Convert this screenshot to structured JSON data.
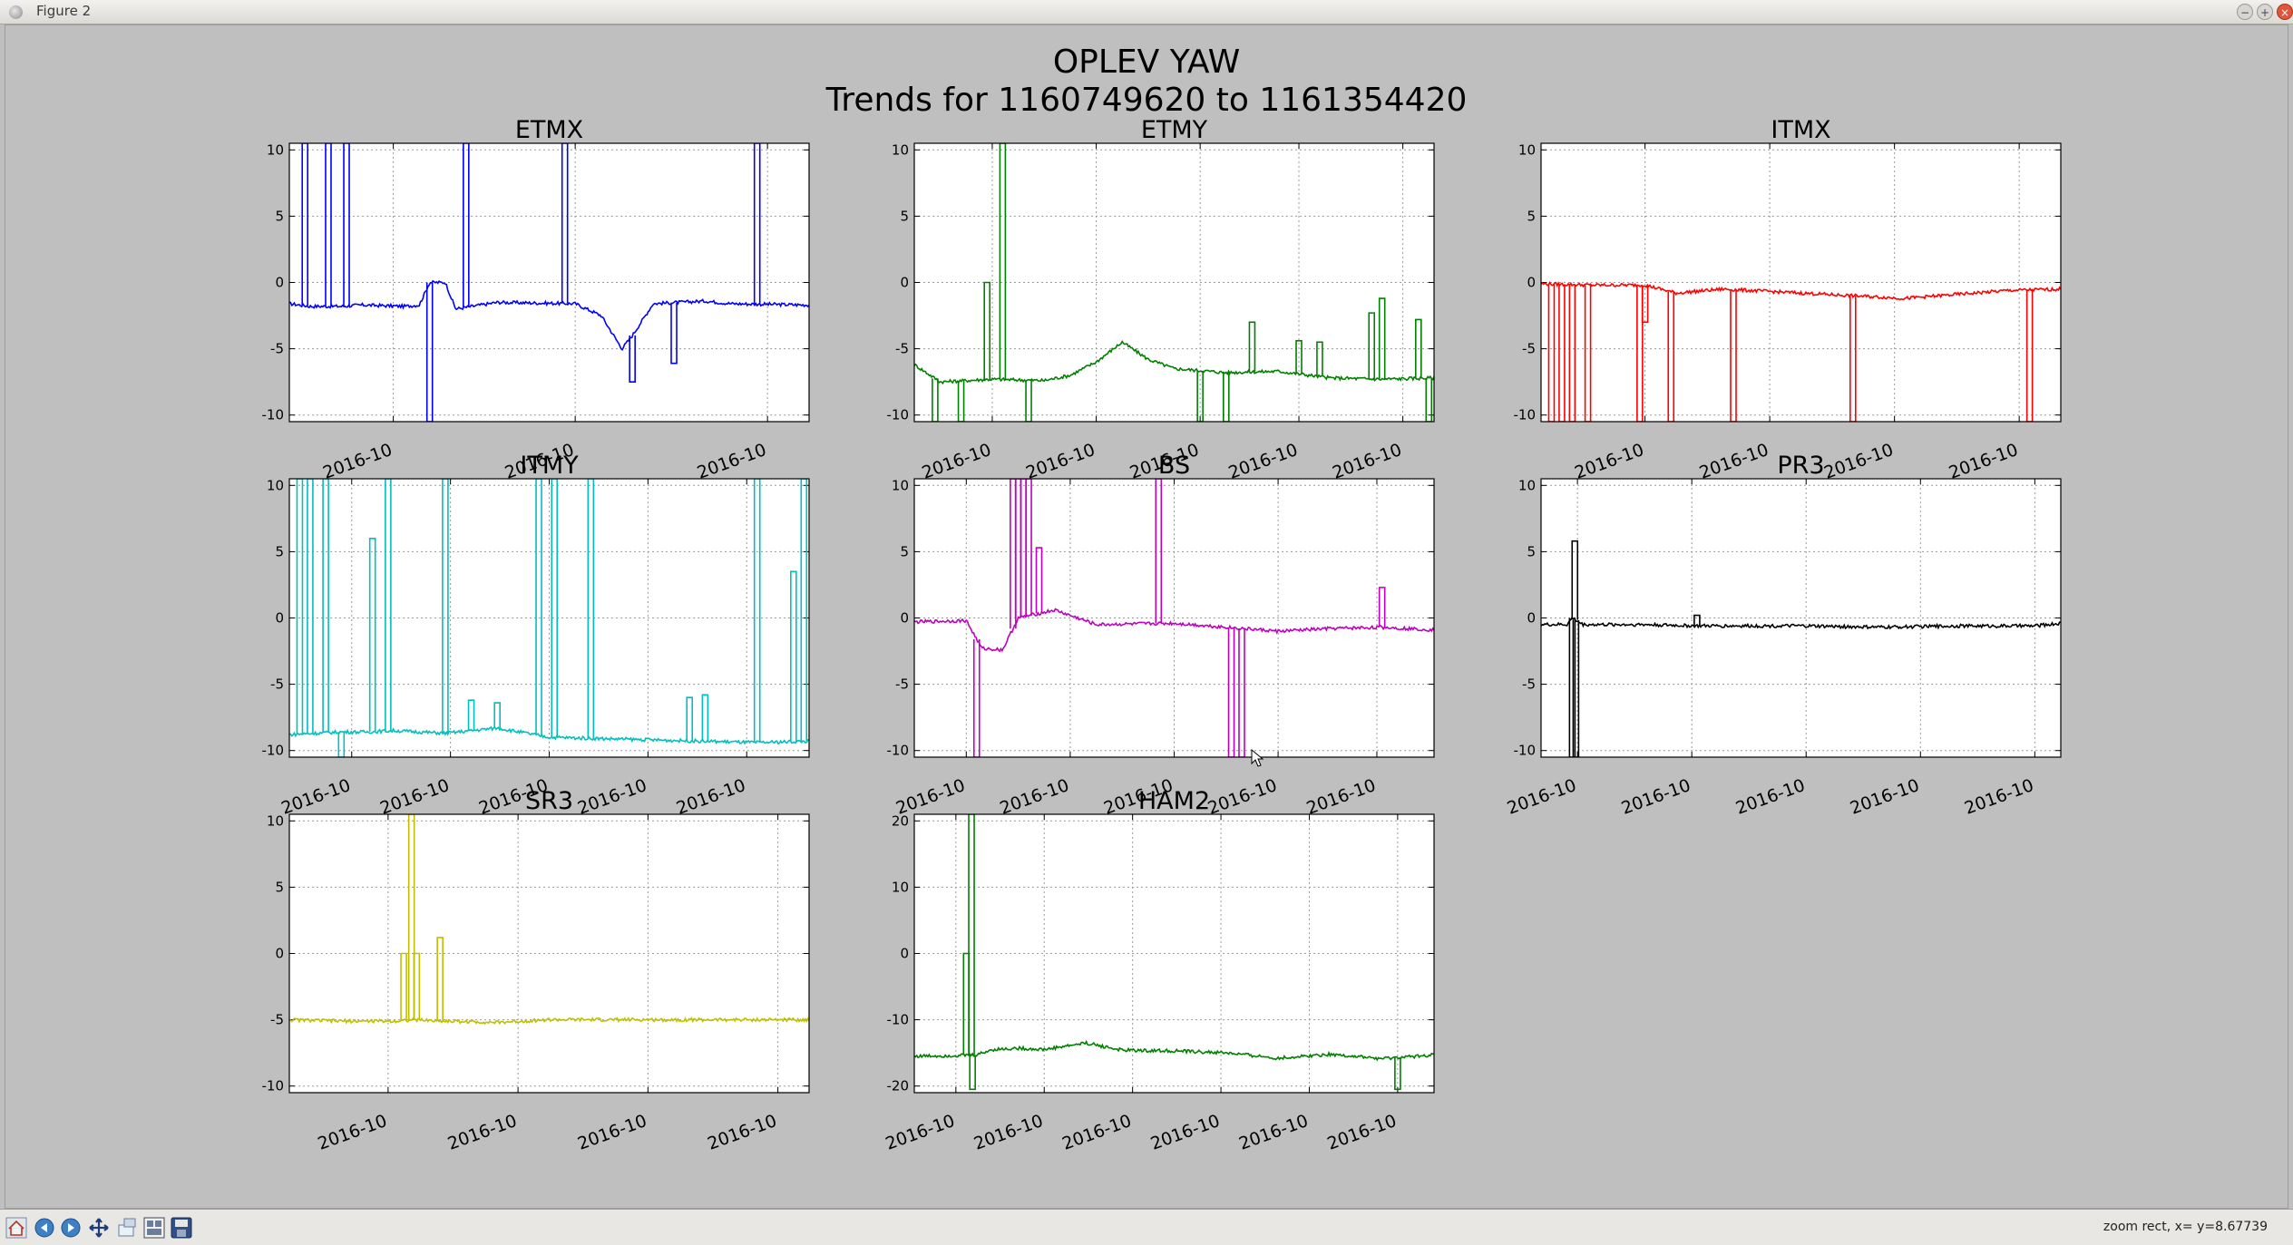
{
  "window": {
    "title": "Figure 2"
  },
  "figure": {
    "suptitle_line1": "OPLEV YAW",
    "suptitle_line2": "Trends for 1160749620 to 1161354420"
  },
  "chart_data": [
    {
      "type": "line",
      "title": "ETMX",
      "color": "#0000ff",
      "ylim": [
        -10.5,
        10.5
      ],
      "yticks": [
        10,
        5,
        0,
        -5,
        -10
      ],
      "xticks": [
        0.2,
        0.55,
        0.92
      ],
      "xticklabels": [
        "2016-10",
        "2016-10",
        "2016-10"
      ],
      "grid": true,
      "x_range": [
        0,
        1
      ],
      "series": [
        {
          "baseline": [
            [
              0,
              -1.6
            ],
            [
              0.04,
              -1.8
            ],
            [
              0.1,
              -1.8
            ],
            [
              0.14,
              -1.7
            ],
            [
              0.22,
              -1.8
            ],
            [
              0.25,
              -1.7
            ],
            [
              0.27,
              0
            ],
            [
              0.3,
              0
            ],
            [
              0.32,
              -2
            ],
            [
              0.4,
              -1.5
            ],
            [
              0.55,
              -1.6
            ],
            [
              0.6,
              -2.5
            ],
            [
              0.64,
              -5
            ],
            [
              0.66,
              -4
            ],
            [
              0.7,
              -1.6
            ],
            [
              0.8,
              -1.4
            ],
            [
              0.85,
              -1.6
            ],
            [
              1,
              -1.7
            ]
          ],
          "spikes": [
            [
              0.03,
              10.5
            ],
            [
              0.075,
              10.5
            ],
            [
              0.11,
              10.5
            ],
            [
              0.27,
              -10.5
            ],
            [
              0.34,
              10.5
            ],
            [
              0.53,
              10.5
            ],
            [
              0.9,
              10.5
            ],
            [
              0.66,
              -7.5
            ],
            [
              0.74,
              -6.1
            ]
          ]
        }
      ]
    },
    {
      "type": "line",
      "title": "ETMY",
      "color": "#008000",
      "ylim": [
        -10.5,
        10.5
      ],
      "yticks": [
        10,
        5,
        0,
        -5,
        -10
      ],
      "xticks": [
        0.15,
        0.35,
        0.55,
        0.74,
        0.94
      ],
      "xticklabels": [
        "2016-10",
        "2016-10",
        "2016-10",
        "2016-10",
        "2016-10"
      ],
      "grid": true,
      "x_range": [
        0,
        1
      ],
      "series": [
        {
          "baseline": [
            [
              0,
              -6.2
            ],
            [
              0.05,
              -7.5
            ],
            [
              0.15,
              -7.3
            ],
            [
              0.25,
              -7.4
            ],
            [
              0.3,
              -7
            ],
            [
              0.35,
              -6
            ],
            [
              0.4,
              -4.5
            ],
            [
              0.45,
              -5.8
            ],
            [
              0.5,
              -6.5
            ],
            [
              0.6,
              -6.8
            ],
            [
              0.7,
              -6.7
            ],
            [
              0.8,
              -7.2
            ],
            [
              0.9,
              -7.3
            ],
            [
              1,
              -7.2
            ]
          ],
          "spikes": [
            [
              0.04,
              -10.5
            ],
            [
              0.09,
              -10.5
            ],
            [
              0.14,
              0
            ],
            [
              0.17,
              10.5
            ],
            [
              0.22,
              -10.5
            ],
            [
              0.55,
              -10.5
            ],
            [
              0.6,
              -10.5
            ],
            [
              0.65,
              -3
            ],
            [
              0.74,
              -4.4
            ],
            [
              0.78,
              -4.5
            ],
            [
              0.88,
              -2.3
            ],
            [
              0.9,
              -1.2
            ],
            [
              0.97,
              -2.8
            ],
            [
              0.99,
              -10.5
            ]
          ]
        }
      ]
    },
    {
      "type": "line",
      "title": "ITMX",
      "color": "#ff0000",
      "ylim": [
        -10.5,
        10.5
      ],
      "yticks": [
        10,
        5,
        0,
        -5,
        -10
      ],
      "xticks": [
        0.2,
        0.44,
        0.68,
        0.92
      ],
      "xticklabels": [
        "2016-10",
        "2016-10",
        "2016-10",
        "2016-10"
      ],
      "grid": true,
      "x_range": [
        0,
        1
      ],
      "series": [
        {
          "baseline": [
            [
              0,
              -0.1
            ],
            [
              0.1,
              -0.2
            ],
            [
              0.2,
              -0.2
            ],
            [
              0.26,
              -0.8
            ],
            [
              0.35,
              -0.5
            ],
            [
              0.5,
              -0.8
            ],
            [
              0.6,
              -1
            ],
            [
              0.7,
              -1.2
            ],
            [
              0.8,
              -0.9
            ],
            [
              0.9,
              -0.6
            ],
            [
              1,
              -0.5
            ]
          ],
          "spikes": [
            [
              0.02,
              -10.5
            ],
            [
              0.04,
              -10.5
            ],
            [
              0.06,
              -10.5
            ],
            [
              0.09,
              -10.5
            ],
            [
              0.19,
              -10.5
            ],
            [
              0.2,
              -3
            ],
            [
              0.25,
              -10.5
            ],
            [
              0.37,
              -10.5
            ],
            [
              0.6,
              -10.5
            ],
            [
              0.94,
              -10.5
            ]
          ]
        }
      ]
    },
    {
      "type": "line",
      "title": "ITMY",
      "color": "#00bfbf",
      "ylim": [
        -10.5,
        10.5
      ],
      "yticks": [
        10,
        5,
        0,
        -5,
        -10
      ],
      "xticks": [
        0.12,
        0.31,
        0.5,
        0.69,
        0.88
      ],
      "xticklabels": [
        "2016-10",
        "2016-10",
        "2016-10",
        "2016-10",
        "2016-10"
      ],
      "grid": true,
      "x_range": [
        0,
        1
      ],
      "series": [
        {
          "baseline": [
            [
              0,
              -8.8
            ],
            [
              0.1,
              -8.6
            ],
            [
              0.15,
              -8.6
            ],
            [
              0.2,
              -8.5
            ],
            [
              0.3,
              -8.7
            ],
            [
              0.4,
              -8.3
            ],
            [
              0.5,
              -9
            ],
            [
              0.6,
              -9.1
            ],
            [
              0.7,
              -9.2
            ],
            [
              0.8,
              -9.3
            ],
            [
              0.9,
              -9.4
            ],
            [
              1,
              -9.3
            ]
          ],
          "spikes": [
            [
              0.02,
              10.5
            ],
            [
              0.04,
              10.5
            ],
            [
              0.07,
              10.5
            ],
            [
              0.1,
              -10.5
            ],
            [
              0.16,
              6
            ],
            [
              0.19,
              10.5
            ],
            [
              0.3,
              10.5
            ],
            [
              0.48,
              10.5
            ],
            [
              0.51,
              10.5
            ],
            [
              0.58,
              10.5
            ],
            [
              0.9,
              10.5
            ],
            [
              0.97,
              3.5
            ],
            [
              0.99,
              10.5
            ],
            [
              0.35,
              -6.2
            ],
            [
              0.4,
              -6.4
            ],
            [
              0.77,
              -6
            ],
            [
              0.8,
              -5.8
            ]
          ]
        }
      ]
    },
    {
      "type": "line",
      "title": "BS",
      "color": "#bf00bf",
      "ylim": [
        -10.5,
        10.5
      ],
      "yticks": [
        10,
        5,
        0,
        -5,
        -10
      ],
      "xticks": [
        0.1,
        0.3,
        0.5,
        0.7,
        0.89
      ],
      "xticklabels": [
        "2016-10",
        "2016-10",
        "2016-10",
        "2016-10",
        "2016-10"
      ],
      "grid": true,
      "x_range": [
        0,
        1
      ],
      "series": [
        {
          "baseline": [
            [
              0,
              -0.3
            ],
            [
              0.1,
              -0.2
            ],
            [
              0.13,
              -2.3
            ],
            [
              0.17,
              -2.4
            ],
            [
              0.2,
              0
            ],
            [
              0.27,
              0.6
            ],
            [
              0.35,
              -0.5
            ],
            [
              0.5,
              -0.4
            ],
            [
              0.6,
              -0.7
            ],
            [
              0.7,
              -1
            ],
            [
              0.8,
              -0.8
            ],
            [
              0.9,
              -0.7
            ],
            [
              1,
              -0.9
            ]
          ],
          "spikes": [
            [
              0.12,
              -10.5
            ],
            [
              0.19,
              10.5
            ],
            [
              0.2,
              10.5
            ],
            [
              0.21,
              10.5
            ],
            [
              0.22,
              10.5
            ],
            [
              0.24,
              5.3
            ],
            [
              0.47,
              10.5
            ],
            [
              0.61,
              -10.5
            ],
            [
              0.63,
              -10.5
            ],
            [
              0.9,
              2.3
            ]
          ]
        }
      ]
    },
    {
      "type": "line",
      "title": "PR3",
      "color": "#000000",
      "ylim": [
        -10.5,
        10.5
      ],
      "yticks": [
        10,
        5,
        0,
        -5,
        -10
      ],
      "xticks": [
        0.07,
        0.29,
        0.51,
        0.73,
        0.95
      ],
      "xticklabels": [
        "2016-10",
        "2016-10",
        "2016-10",
        "2016-10",
        "2016-10"
      ],
      "grid": true,
      "x_range": [
        0,
        1
      ],
      "series": [
        {
          "baseline": [
            [
              0,
              -0.5
            ],
            [
              0.05,
              -0.5
            ],
            [
              0.06,
              0
            ],
            [
              0.08,
              -0.5
            ],
            [
              0.2,
              -0.5
            ],
            [
              0.3,
              -0.6
            ],
            [
              0.5,
              -0.6
            ],
            [
              0.65,
              -0.7
            ],
            [
              0.8,
              -0.6
            ],
            [
              0.95,
              -0.6
            ],
            [
              1,
              -0.4
            ]
          ],
          "spikes": [
            [
              0.06,
              -10.5
            ],
            [
              0.065,
              5.8
            ],
            [
              0.067,
              -10.5
            ],
            [
              0.3,
              0.2
            ]
          ]
        }
      ]
    },
    {
      "type": "line",
      "title": "SR3",
      "color": "#bfbf00",
      "ylim": [
        -10.5,
        10.5
      ],
      "yticks": [
        10,
        5,
        0,
        -5,
        -10
      ],
      "xticks": [
        0.19,
        0.44,
        0.69,
        0.94
      ],
      "xticklabels": [
        "2016-10",
        "2016-10",
        "2016-10",
        "2016-10"
      ],
      "grid": true,
      "x_range": [
        0,
        1
      ],
      "series": [
        {
          "baseline": [
            [
              0,
              -5
            ],
            [
              0.1,
              -5.1
            ],
            [
              0.2,
              -5.1
            ],
            [
              0.24,
              -5
            ],
            [
              0.3,
              -5.1
            ],
            [
              0.4,
              -5.2
            ],
            [
              0.5,
              -5
            ],
            [
              0.7,
              -5
            ],
            [
              1,
              -5
            ]
          ],
          "spikes": [
            [
              0.22,
              0
            ],
            [
              0.235,
              10.5
            ],
            [
              0.245,
              0
            ],
            [
              0.29,
              1.2
            ]
          ]
        }
      ]
    },
    {
      "type": "line",
      "title": "HAM2",
      "color": "#008000",
      "ylim": [
        -21,
        21
      ],
      "yticks": [
        20,
        10,
        0,
        -10,
        -20
      ],
      "xticks": [
        0.08,
        0.25,
        0.42,
        0.59,
        0.76,
        0.93
      ],
      "xticklabels": [
        "2016-10",
        "2016-10",
        "2016-10",
        "2016-10",
        "2016-10",
        "2016-10"
      ],
      "grid": true,
      "x_range": [
        0,
        1
      ],
      "series": [
        {
          "baseline": [
            [
              0,
              -15.5
            ],
            [
              0.08,
              -15.4
            ],
            [
              0.12,
              -15.3
            ],
            [
              0.15,
              -14.5
            ],
            [
              0.2,
              -14.3
            ],
            [
              0.25,
              -14.5
            ],
            [
              0.33,
              -13.5
            ],
            [
              0.4,
              -14.6
            ],
            [
              0.5,
              -14.7
            ],
            [
              0.6,
              -15
            ],
            [
              0.7,
              -15.8
            ],
            [
              0.8,
              -15.2
            ],
            [
              0.9,
              -15.9
            ],
            [
              1,
              -15.3
            ]
          ],
          "spikes": [
            [
              0.1,
              0
            ],
            [
              0.11,
              21
            ],
            [
              0.112,
              -20.5
            ],
            [
              0.93,
              -20.5
            ]
          ]
        }
      ]
    }
  ],
  "toolbar": {
    "buttons": [
      {
        "name": "home-icon"
      },
      {
        "name": "back-icon"
      },
      {
        "name": "forward-icon"
      },
      {
        "name": "pan-icon"
      },
      {
        "name": "zoom-icon"
      },
      {
        "name": "subplots-icon"
      },
      {
        "name": "save-icon"
      }
    ],
    "status": "zoom rect, x= y=8.67739"
  }
}
